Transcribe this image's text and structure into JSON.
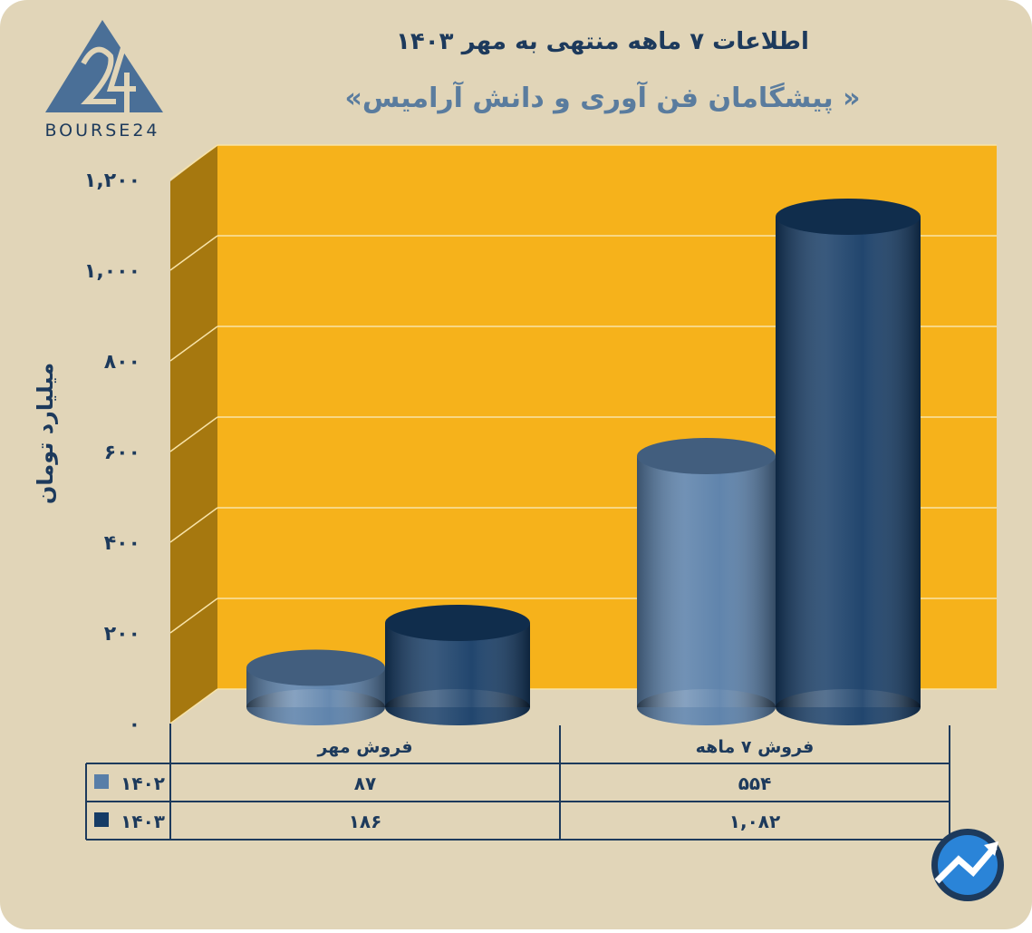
{
  "logo": "BOURSE24",
  "chart_data": {
    "type": "bar3d",
    "title": "اطلاعات ۷ ماهه منتهی به مهر ۱۴۰۳",
    "subtitle": "«پیشگامان فن آوری و دانش آرامیس »",
    "y_label": "میلیارد تومان",
    "categories": [
      "فروش مهر",
      "فروش ۷ ماهه"
    ],
    "series": [
      {
        "name": "۱۴۰۲",
        "color": "#587ea8",
        "values": [
          87,
          554
        ],
        "value_labels": [
          "۸۷",
          "۵۵۴"
        ]
      },
      {
        "name": "۱۴۰۳",
        "color": "#163c66",
        "values": [
          186,
          1082
        ],
        "value_labels": [
          "۱۸۶",
          "۱,۰۸۲"
        ]
      }
    ],
    "ylim": [
      0,
      1200
    ],
    "yticks": [
      {
        "value": 0,
        "label": "۰"
      },
      {
        "value": 200,
        "label": "۲۰۰"
      },
      {
        "value": 400,
        "label": "۴۰۰"
      },
      {
        "value": 600,
        "label": "۶۰۰"
      },
      {
        "value": 800,
        "label": "۸۰۰"
      },
      {
        "value": 1000,
        "label": "۱,۰۰۰"
      },
      {
        "value": 1200,
        "label": "۱,۲۰۰"
      }
    ],
    "grid": true
  }
}
